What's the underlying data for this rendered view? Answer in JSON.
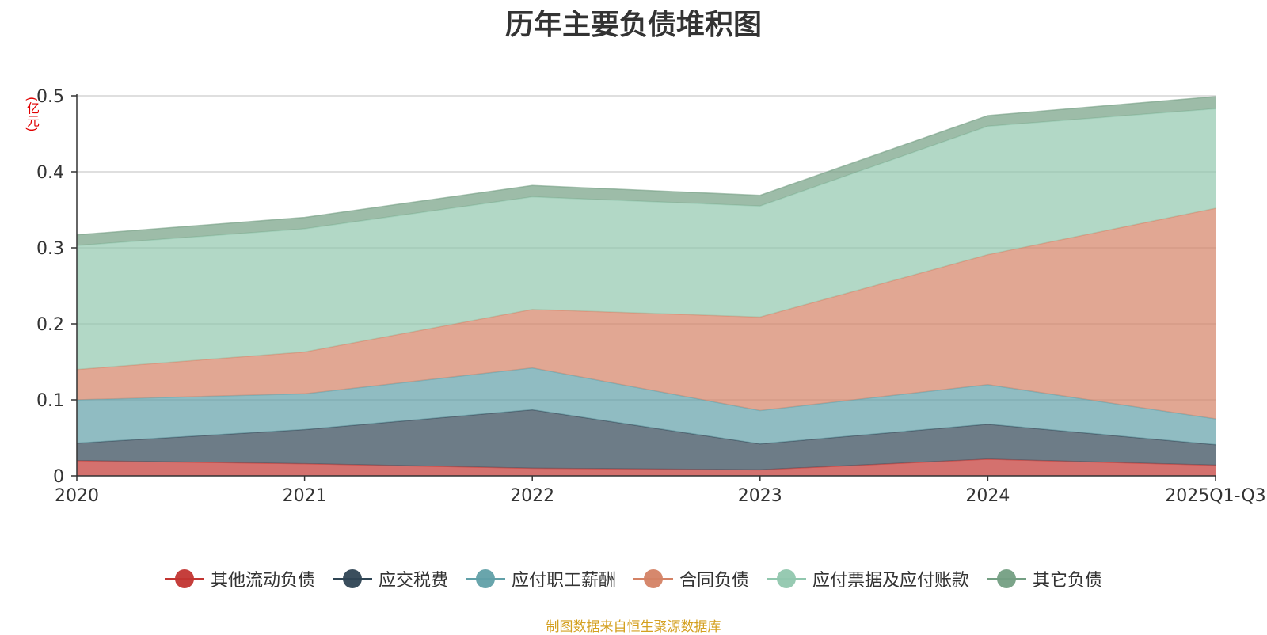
{
  "chart_data": {
    "type": "area",
    "stacked": true,
    "title": "历年主要负债堆积图",
    "unit_label": "(亿元)",
    "categories": [
      "2020",
      "2021",
      "2022",
      "2023",
      "2024",
      "2025Q1-Q3"
    ],
    "ylim": [
      0,
      0.5
    ],
    "yticks": [
      0,
      0.1,
      0.2,
      0.3,
      0.4,
      0.5
    ],
    "ytick_labels": [
      "0",
      "0.1",
      "0.2",
      "0.3",
      "0.4",
      "0.5"
    ],
    "grid": true,
    "legend_position": "bottom",
    "series": [
      {
        "name": "其他流动负债",
        "color": "#c23531",
        "values": [
          0.02,
          0.016,
          0.01,
          0.008,
          0.022,
          0.014
        ]
      },
      {
        "name": "应交税费",
        "color": "#2f4554",
        "values": [
          0.023,
          0.045,
          0.077,
          0.034,
          0.046,
          0.027
        ]
      },
      {
        "name": "应付职工薪酬",
        "color": "#61a0a8",
        "values": [
          0.057,
          0.047,
          0.055,
          0.044,
          0.052,
          0.034
        ]
      },
      {
        "name": "合同负债",
        "color": "#d48265",
        "values": [
          0.04,
          0.055,
          0.077,
          0.123,
          0.171,
          0.277
        ]
      },
      {
        "name": "应付票据及应付账款",
        "color": "#91c7ae",
        "values": [
          0.163,
          0.162,
          0.148,
          0.146,
          0.169,
          0.131
        ]
      },
      {
        "name": "其它负债",
        "color": "#749f83",
        "values": [
          0.014,
          0.015,
          0.015,
          0.014,
          0.014,
          0.016
        ]
      }
    ]
  },
  "source_note": "制图数据来自恒生聚源数据库"
}
